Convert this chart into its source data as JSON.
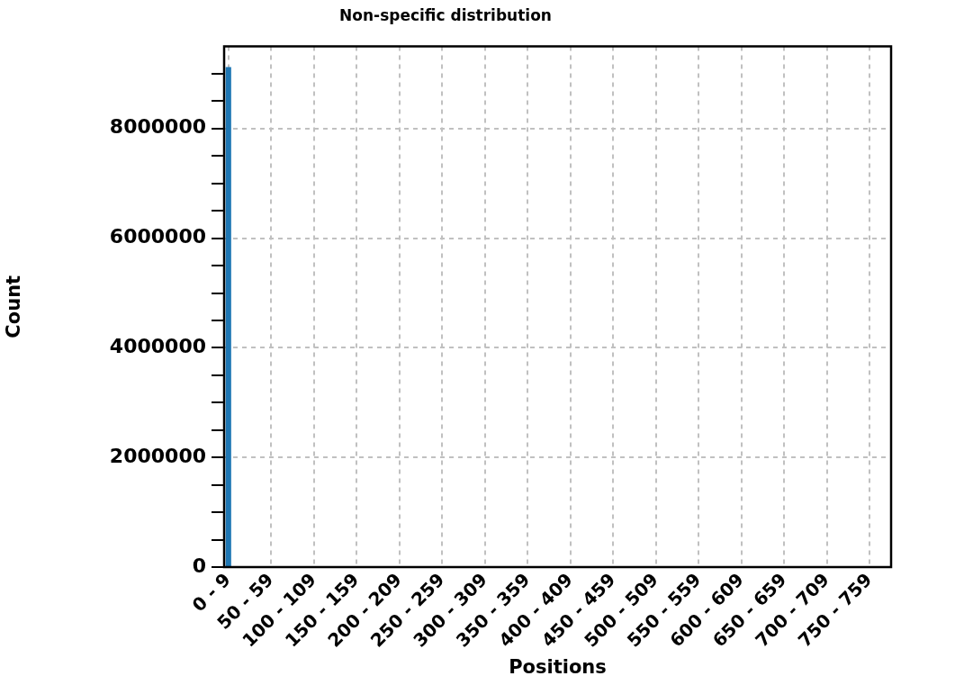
{
  "chart_data": {
    "type": "bar",
    "title": "Non-specific distribution",
    "xlabel": "Positions",
    "ylabel": "Count",
    "categories": [
      "0 - 9",
      null,
      null,
      null,
      null,
      "50 - 59",
      null,
      null,
      null,
      null,
      "100 - 109",
      null,
      null,
      null,
      null,
      "150 - 159",
      null,
      null,
      null,
      null,
      "200 - 209",
      null,
      null,
      null,
      null,
      "250 - 259",
      null,
      null,
      null,
      null,
      "300 - 309",
      null,
      null,
      null,
      null,
      "350 - 359",
      null,
      null,
      null,
      null,
      "400 - 409",
      null,
      null,
      null,
      null,
      "450 - 459",
      null,
      null,
      null,
      null,
      "500 - 509",
      null,
      null,
      null,
      null,
      "550 - 559",
      null,
      null,
      null,
      null,
      "600 - 609",
      null,
      null,
      null,
      null,
      "650 - 659",
      null,
      null,
      null,
      null,
      "700 - 709",
      null,
      null,
      null,
      null,
      "750 - 759",
      null,
      null
    ],
    "values": [
      9120000,
      0,
      0,
      0,
      0,
      0,
      0,
      0,
      0,
      0,
      0,
      0,
      0,
      0,
      0,
      0,
      0,
      0,
      0,
      0,
      0,
      0,
      0,
      0,
      0,
      0,
      0,
      0,
      0,
      0,
      0,
      0,
      0,
      0,
      0,
      0,
      0,
      0,
      0,
      0,
      0,
      0,
      0,
      0,
      0,
      0,
      0,
      0,
      0,
      0,
      0,
      0,
      0,
      0,
      0,
      0,
      0,
      0,
      0,
      0,
      0,
      0,
      0,
      0,
      0,
      0,
      0,
      0,
      0,
      0,
      0,
      0,
      0,
      0,
      0,
      0,
      0,
      0
    ],
    "color": "#1f77b4",
    "ylim": [
      0,
      9500000
    ],
    "yticks": [
      0,
      {
        "value": 500000,
        "label": null
      },
      {
        "value": 1000000,
        "label": null
      },
      {
        "value": 1500000,
        "label": null
      },
      2000000,
      {
        "value": 2500000,
        "label": null
      },
      {
        "value": 3000000,
        "label": null
      },
      {
        "value": 3500000,
        "label": null
      },
      4000000,
      {
        "value": 4500000,
        "label": null
      },
      {
        "value": 5000000,
        "label": null
      },
      {
        "value": 5500000,
        "label": null
      },
      6000000,
      {
        "value": 6500000,
        "label": null
      },
      {
        "value": 7000000,
        "label": null
      },
      {
        "value": 7500000,
        "label": null
      },
      8000000,
      {
        "value": 8500000,
        "label": null
      },
      {
        "value": 9000000,
        "label": null
      }
    ],
    "grid": true,
    "legend": false
  }
}
